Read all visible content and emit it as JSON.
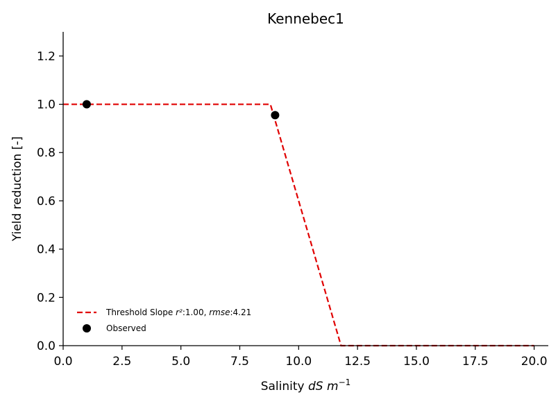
{
  "chart_data": {
    "type": "line",
    "title": "Kennebec1",
    "xlabel": {
      "prefix": "Salinity ",
      "unit": "dS",
      "unit2": "m",
      "exponent": "−1"
    },
    "ylabel": "Yield reduction [-]",
    "xlim": [
      0,
      20.6
    ],
    "ylim": [
      0,
      1.3
    ],
    "xticks": [
      0,
      2.5,
      5,
      7.5,
      10,
      12.5,
      15,
      17.5,
      20
    ],
    "xtick_labels": [
      "0.0",
      "2.5",
      "5.0",
      "7.5",
      "10.0",
      "12.5",
      "15.0",
      "17.5",
      "20.0"
    ],
    "yticks": [
      0,
      0.2,
      0.4,
      0.6,
      0.8,
      1.0,
      1.2
    ],
    "ytick_labels": [
      "0.0",
      "0.2",
      "0.4",
      "0.6",
      "0.8",
      "1.0",
      "1.2"
    ],
    "grid": false,
    "legend_position": "lower-left",
    "series": [
      {
        "name": "threshold-slope",
        "kind": "line",
        "style": "dashed",
        "color": "#e00000",
        "x": [
          0,
          8.8,
          11.8,
          20
        ],
        "y": [
          1.0,
          1.0,
          0.0,
          0.0
        ]
      },
      {
        "name": "observed",
        "kind": "scatter",
        "color": "#000000",
        "x": [
          1.0,
          9.0
        ],
        "y": [
          1.0,
          0.955
        ]
      }
    ],
    "legend": [
      {
        "series": "threshold-slope",
        "label_parts": [
          "Threshold Slope ",
          "r²",
          ":1.00, ",
          "rmse",
          ":4.21"
        ]
      },
      {
        "series": "observed",
        "label_parts": [
          "Observed"
        ]
      }
    ]
  }
}
